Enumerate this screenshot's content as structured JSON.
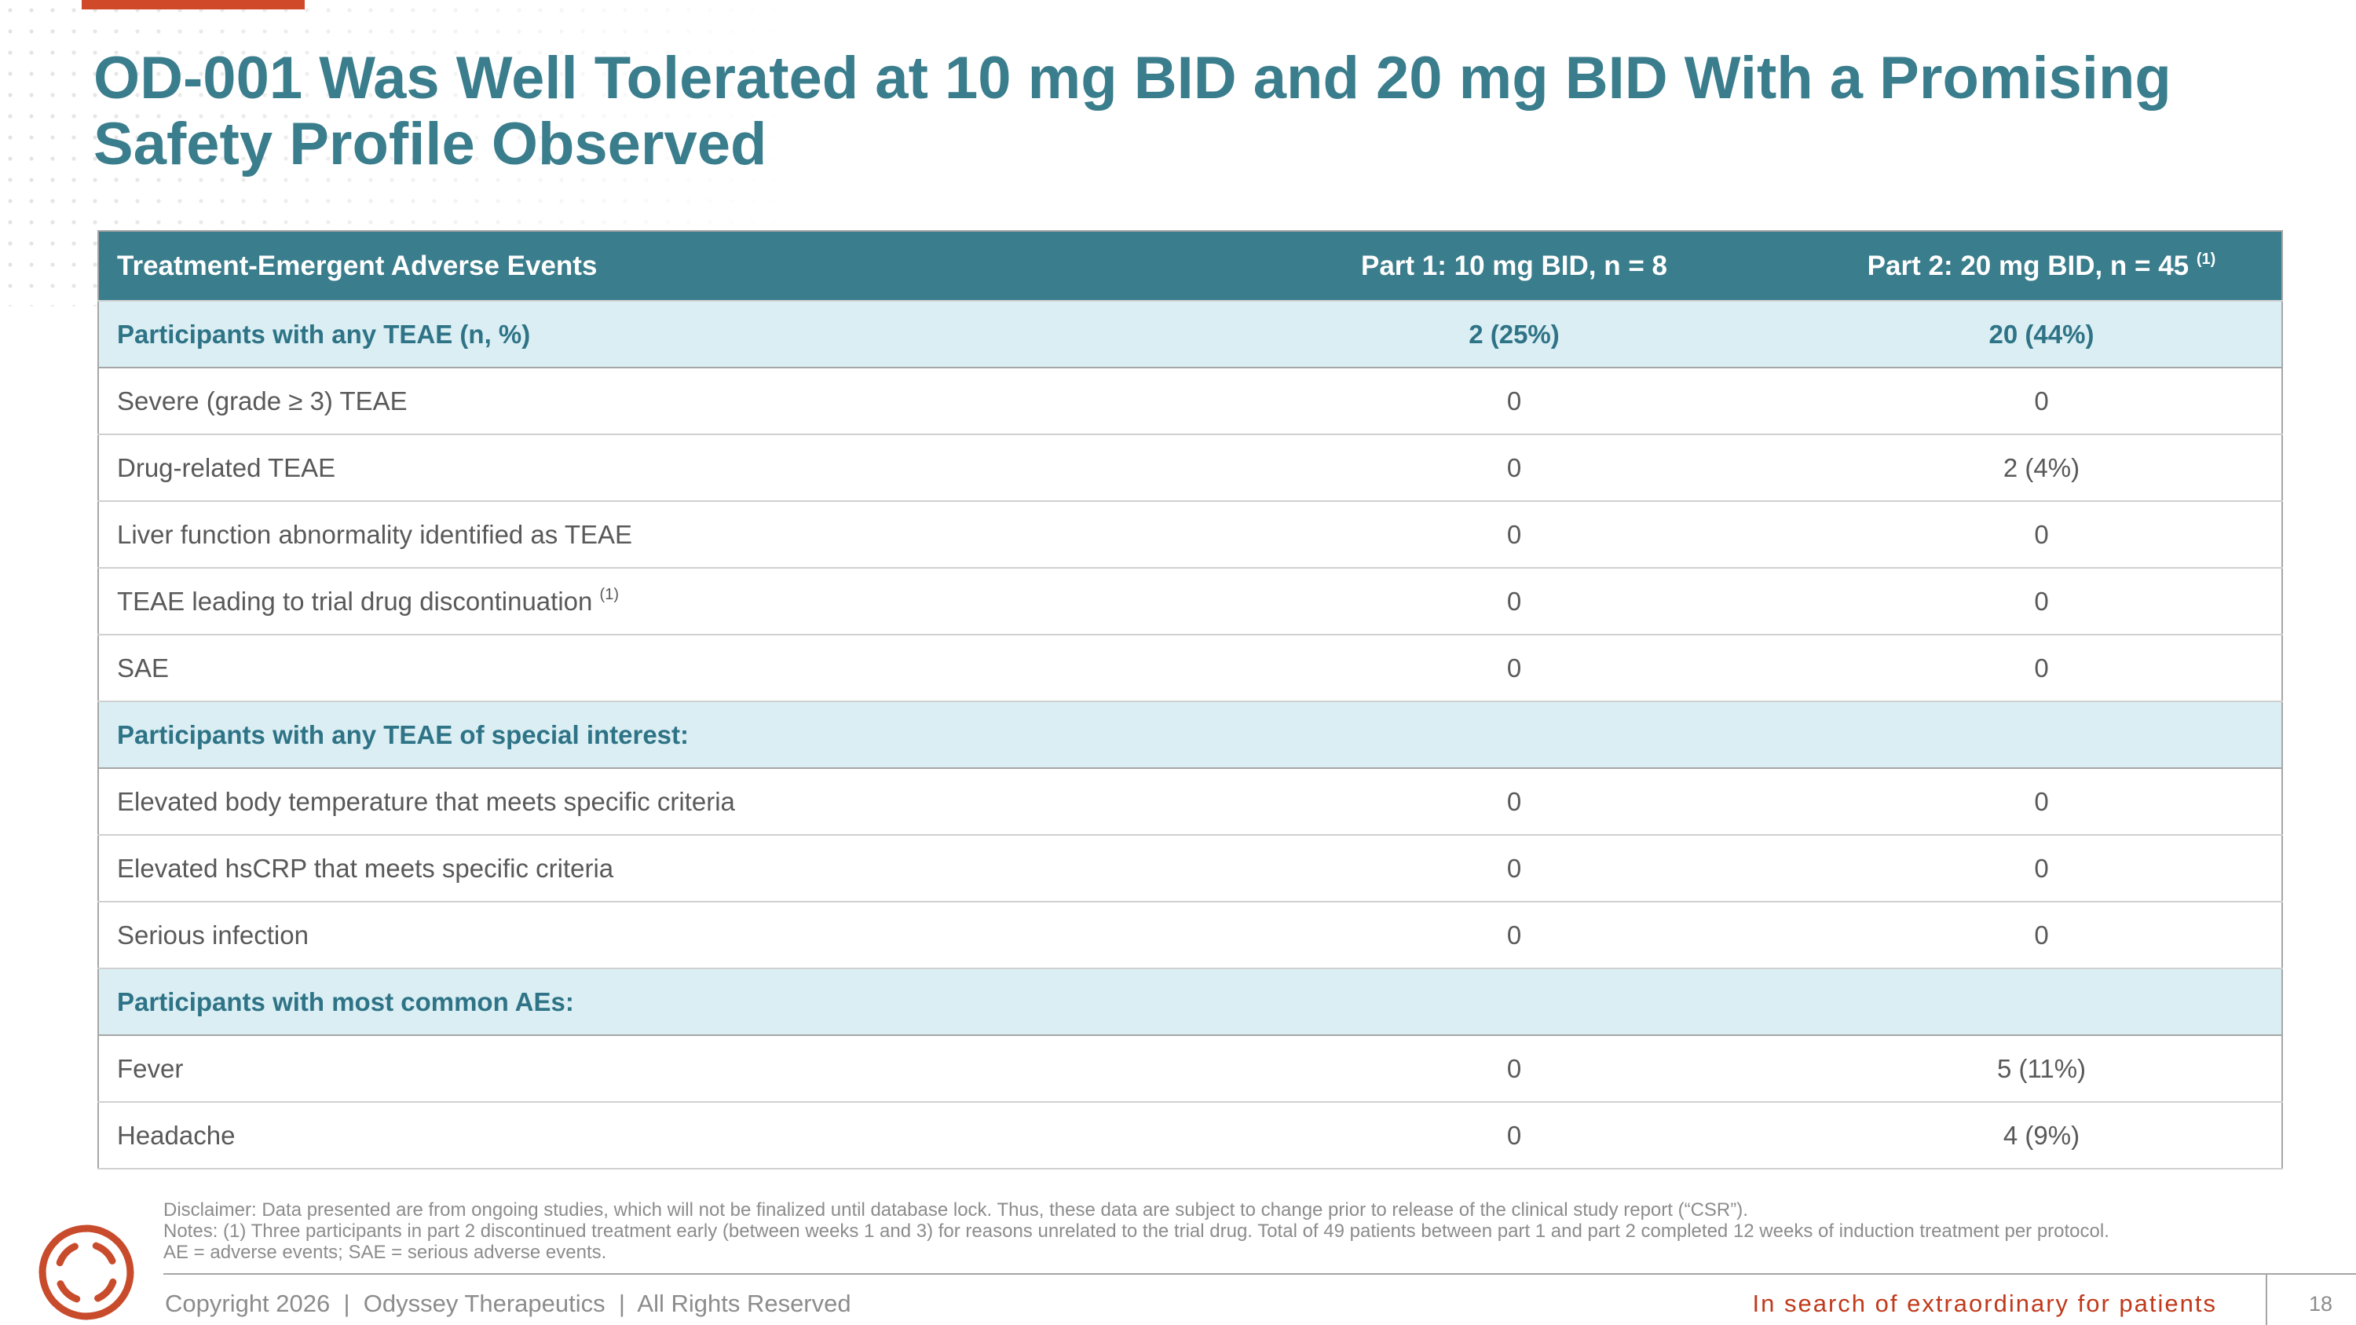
{
  "header": {
    "title_lines": [
      "OD-001 Was Well Tolerated at 10 mg BID and 20 mg BID With a Promising",
      "Safety Profile Observed"
    ]
  },
  "table": {
    "columns": [
      "Treatment-Emergent Adverse Events",
      "Part 1: 10 mg BID, n = 8",
      "Part 2: 20 mg BID, n = 45"
    ],
    "column_note": "(1)",
    "sections": [
      {
        "heading": "Participants with any TEAE (n, %)",
        "values": [
          "2 (25%)",
          "20 (44%)"
        ],
        "rows": [
          {
            "label": "Severe (grade ≥ 3) TEAE",
            "values": [
              "0",
              "0"
            ]
          },
          {
            "label": "Drug-related TEAE",
            "values": [
              "0",
              "2 (4%)"
            ]
          },
          {
            "label": "Liver function abnormality identified as TEAE",
            "values": [
              "0",
              "0"
            ]
          },
          {
            "label": "TEAE leading to trial drug discontinuation",
            "note": "(1)",
            "values": [
              "0",
              "0"
            ]
          },
          {
            "label": "SAE",
            "values": [
              "0",
              "0"
            ]
          }
        ]
      },
      {
        "heading": "Participants with any TEAE of special interest:",
        "rows": [
          {
            "label": "Elevated body temperature that meets specific criteria",
            "values": [
              "0",
              "0"
            ]
          },
          {
            "label": "Elevated hsCRP that meets specific criteria",
            "values": [
              "0",
              "0"
            ]
          },
          {
            "label": "Serious infection",
            "values": [
              "0",
              "0"
            ]
          }
        ]
      },
      {
        "heading": "Participants with most common AEs:",
        "rows": [
          {
            "label": "Fever",
            "values": [
              "0",
              "5 (11%)"
            ]
          },
          {
            "label": "Headache",
            "values": [
              "0",
              "4 (9%)"
            ]
          }
        ]
      }
    ]
  },
  "footer": {
    "disclaimer": [
      "Disclaimer: Data presented are from ongoing studies, which will not be finalized until database lock. Thus, these data are subject to change prior to release of the clinical study report (“CSR”).",
      "Notes: (1) Three participants in part 2 discontinued treatment early (between weeks 1 and 3) for reasons unrelated to the trial drug. Total of 49 patients between part 1 and part 2 completed 12 weeks of induction treatment per protocol.",
      "AE = adverse events; SAE = serious adverse events."
    ],
    "copyright": "Copyright 2026  |  Odyssey Therapeutics  |  All Rights Reserved",
    "tagline": "In search of extraordinary for patients",
    "page_number": "18"
  }
}
